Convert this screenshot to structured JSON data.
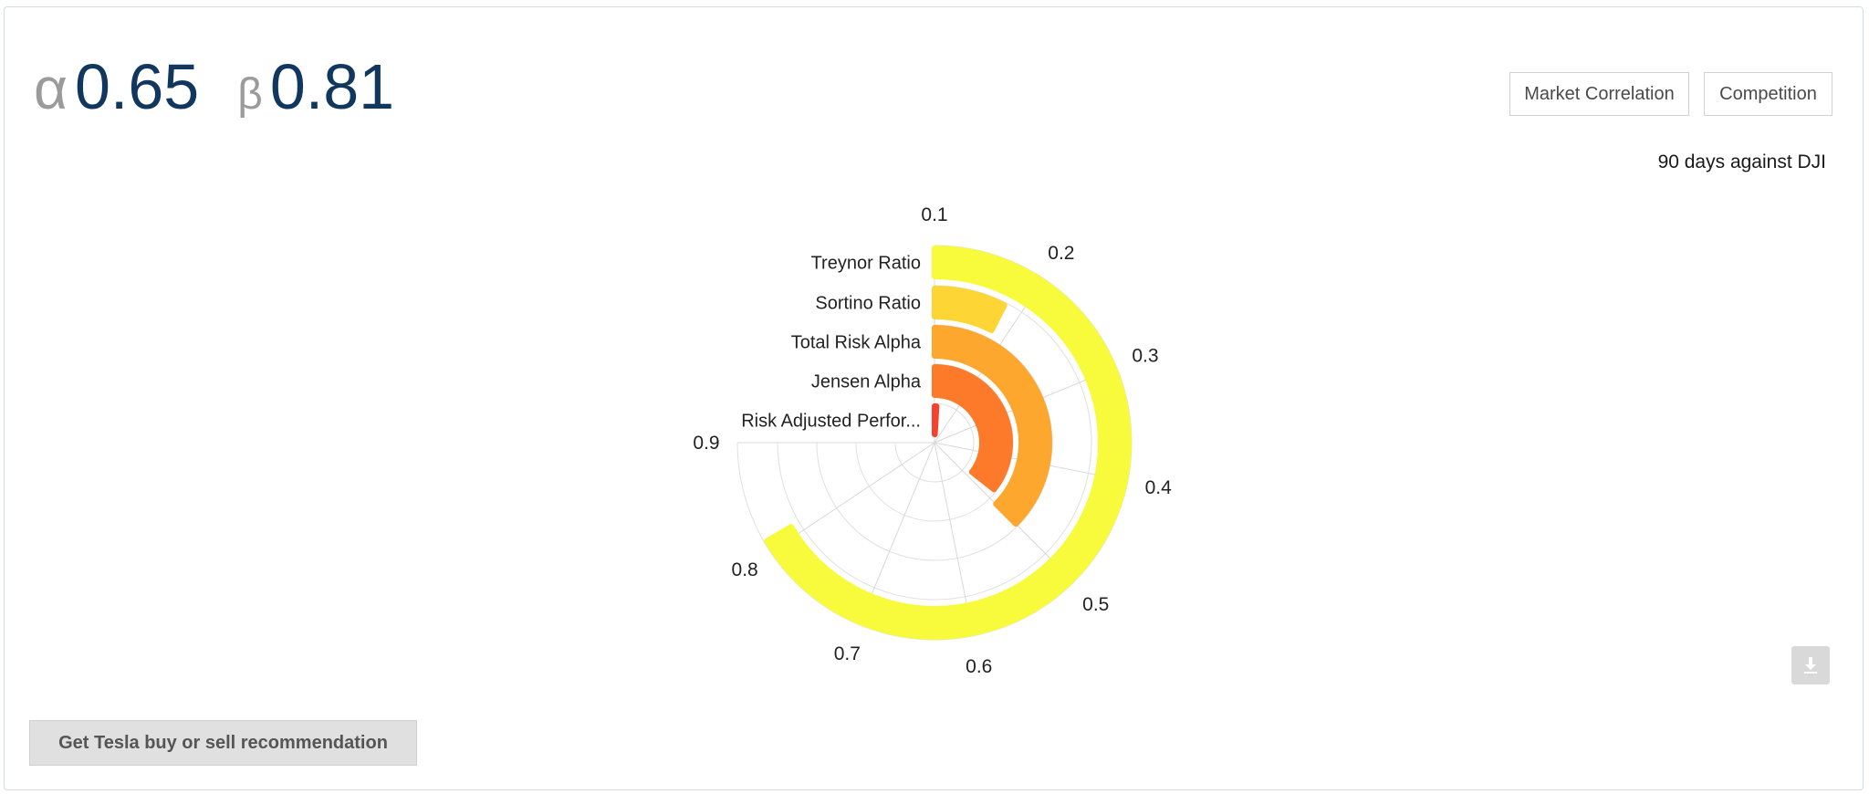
{
  "header": {
    "alpha_symbol": "α",
    "alpha_value": "0.65",
    "beta_symbol": "β",
    "beta_value": "0.81"
  },
  "buttons": {
    "market_correlation": "Market Correlation",
    "competition": "Competition",
    "recommendation": "Get Tesla buy or sell recommendation"
  },
  "subtitle": "90 days against DJI",
  "icons": {
    "download": "download-icon"
  },
  "chart_data": {
    "type": "polar-bar",
    "angular_axis": {
      "min": 0.1,
      "max": 0.9,
      "ticks": [
        "0.1",
        "0.2",
        "0.3",
        "0.4",
        "0.5",
        "0.6",
        "0.7",
        "0.8",
        "0.9"
      ]
    },
    "categories": [
      "Treynor Ratio",
      "Sortino Ratio",
      "Total Risk Alpha",
      "Jensen Alpha",
      "Risk Adjusted Perfor..."
    ],
    "values": [
      0.81,
      0.18,
      0.5,
      0.48,
      0.11
    ],
    "colors": [
      "#f8fb3c",
      "#fdd535",
      "#fda72f",
      "#fd7a2a",
      "#f7412f"
    ],
    "grid": true
  }
}
